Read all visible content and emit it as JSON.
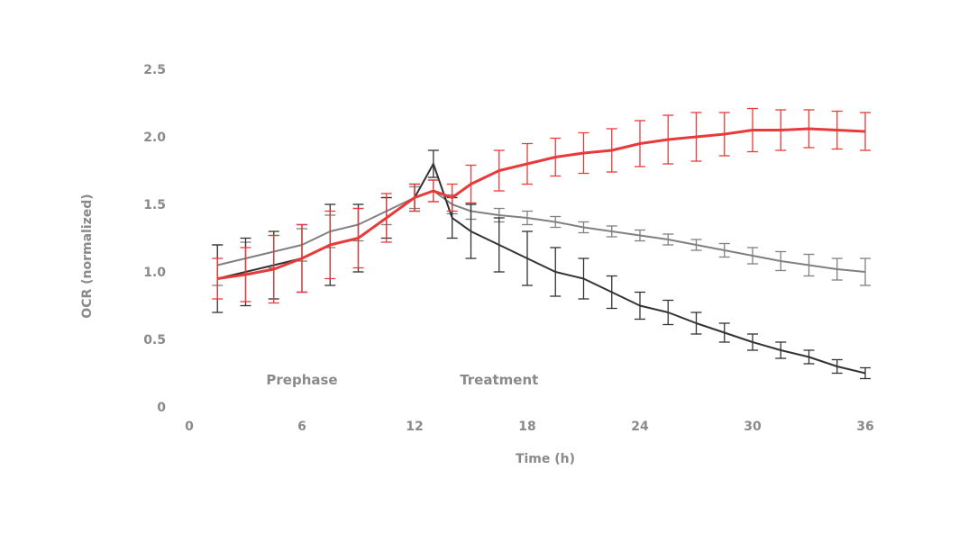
{
  "chart_data": {
    "type": "line",
    "title": "",
    "xlabel": "Time (h)",
    "ylabel": "OCR (normalized)",
    "xlim": [
      0,
      36
    ],
    "ylim": [
      0,
      2.5
    ],
    "x_ticks": [
      "0",
      "6",
      "12",
      "18",
      "24",
      "30",
      "36"
    ],
    "y_ticks": [
      "0",
      "0.5",
      "1.5",
      "2.0",
      "2.5"
    ],
    "y_ticks_values": [
      0,
      0.5,
      1.5,
      2.0,
      2.5
    ],
    "y_tick_extra": {
      "label": "1.0",
      "value": 1.0
    },
    "x_ticks_values": [
      0,
      6,
      12,
      18,
      24,
      30,
      36
    ],
    "grid": false,
    "annotations": [
      {
        "text": "Prephase",
        "x": 6,
        "y": 0.2
      },
      {
        "text": "Treatment",
        "x": 16.5,
        "y": 0.2
      }
    ],
    "series": [
      {
        "color": "#808080",
        "x": [
          1.5,
          3,
          4.5,
          6,
          7.5,
          9,
          10.5,
          12,
          13,
          14,
          15,
          16.5,
          18,
          19.5,
          21,
          22.5,
          24,
          25.5,
          27,
          28.5,
          30,
          31.5,
          33,
          34.5,
          36
        ],
        "y": [
          1.05,
          1.1,
          1.15,
          1.2,
          1.3,
          1.35,
          1.45,
          1.55,
          1.6,
          1.5,
          1.45,
          1.42,
          1.4,
          1.37,
          1.33,
          1.3,
          1.27,
          1.24,
          1.2,
          1.16,
          1.12,
          1.08,
          1.05,
          1.02,
          1.0
        ],
        "err": [
          0.15,
          0.12,
          0.12,
          0.12,
          0.12,
          0.12,
          0.1,
          0.08,
          0.08,
          0.07,
          0.06,
          0.05,
          0.05,
          0.04,
          0.04,
          0.04,
          0.04,
          0.04,
          0.04,
          0.05,
          0.06,
          0.07,
          0.08,
          0.08,
          0.1
        ]
      },
      {
        "color": "#333333",
        "x": [
          1.5,
          3,
          4.5,
          6,
          7.5,
          9,
          10.5,
          12,
          13,
          14,
          15,
          16.5,
          18,
          19.5,
          21,
          22.5,
          24,
          25.5,
          27,
          28.5,
          30,
          31.5,
          33,
          34.5,
          36
        ],
        "y": [
          0.95,
          1.0,
          1.05,
          1.1,
          1.2,
          1.25,
          1.4,
          1.55,
          1.8,
          1.4,
          1.3,
          1.2,
          1.1,
          1.0,
          0.95,
          0.85,
          0.75,
          0.7,
          0.62,
          0.55,
          0.48,
          0.42,
          0.37,
          0.3,
          0.25
        ],
        "err": [
          0.25,
          0.25,
          0.25,
          0.25,
          0.3,
          0.25,
          0.15,
          0.1,
          0.1,
          0.15,
          0.2,
          0.2,
          0.2,
          0.18,
          0.15,
          0.12,
          0.1,
          0.09,
          0.08,
          0.07,
          0.06,
          0.06,
          0.05,
          0.05,
          0.04
        ]
      },
      {
        "color": "#e83a3a",
        "x": [
          1.5,
          3,
          4.5,
          6,
          7.5,
          9,
          10.5,
          12,
          13,
          14,
          15,
          16.5,
          18,
          19.5,
          21,
          22.5,
          24,
          25.5,
          27,
          28.5,
          30,
          31.5,
          33,
          34.5,
          36
        ],
        "y": [
          0.95,
          0.98,
          1.02,
          1.1,
          1.2,
          1.25,
          1.4,
          1.55,
          1.6,
          1.55,
          1.65,
          1.75,
          1.8,
          1.85,
          1.88,
          1.9,
          1.95,
          1.98,
          2.0,
          2.02,
          2.05,
          2.05,
          2.06,
          2.05,
          2.04
        ],
        "err": [
          0.15,
          0.2,
          0.25,
          0.25,
          0.25,
          0.22,
          0.18,
          0.1,
          0.08,
          0.1,
          0.14,
          0.15,
          0.15,
          0.14,
          0.15,
          0.16,
          0.17,
          0.18,
          0.18,
          0.16,
          0.16,
          0.15,
          0.14,
          0.14,
          0.14
        ]
      }
    ]
  }
}
